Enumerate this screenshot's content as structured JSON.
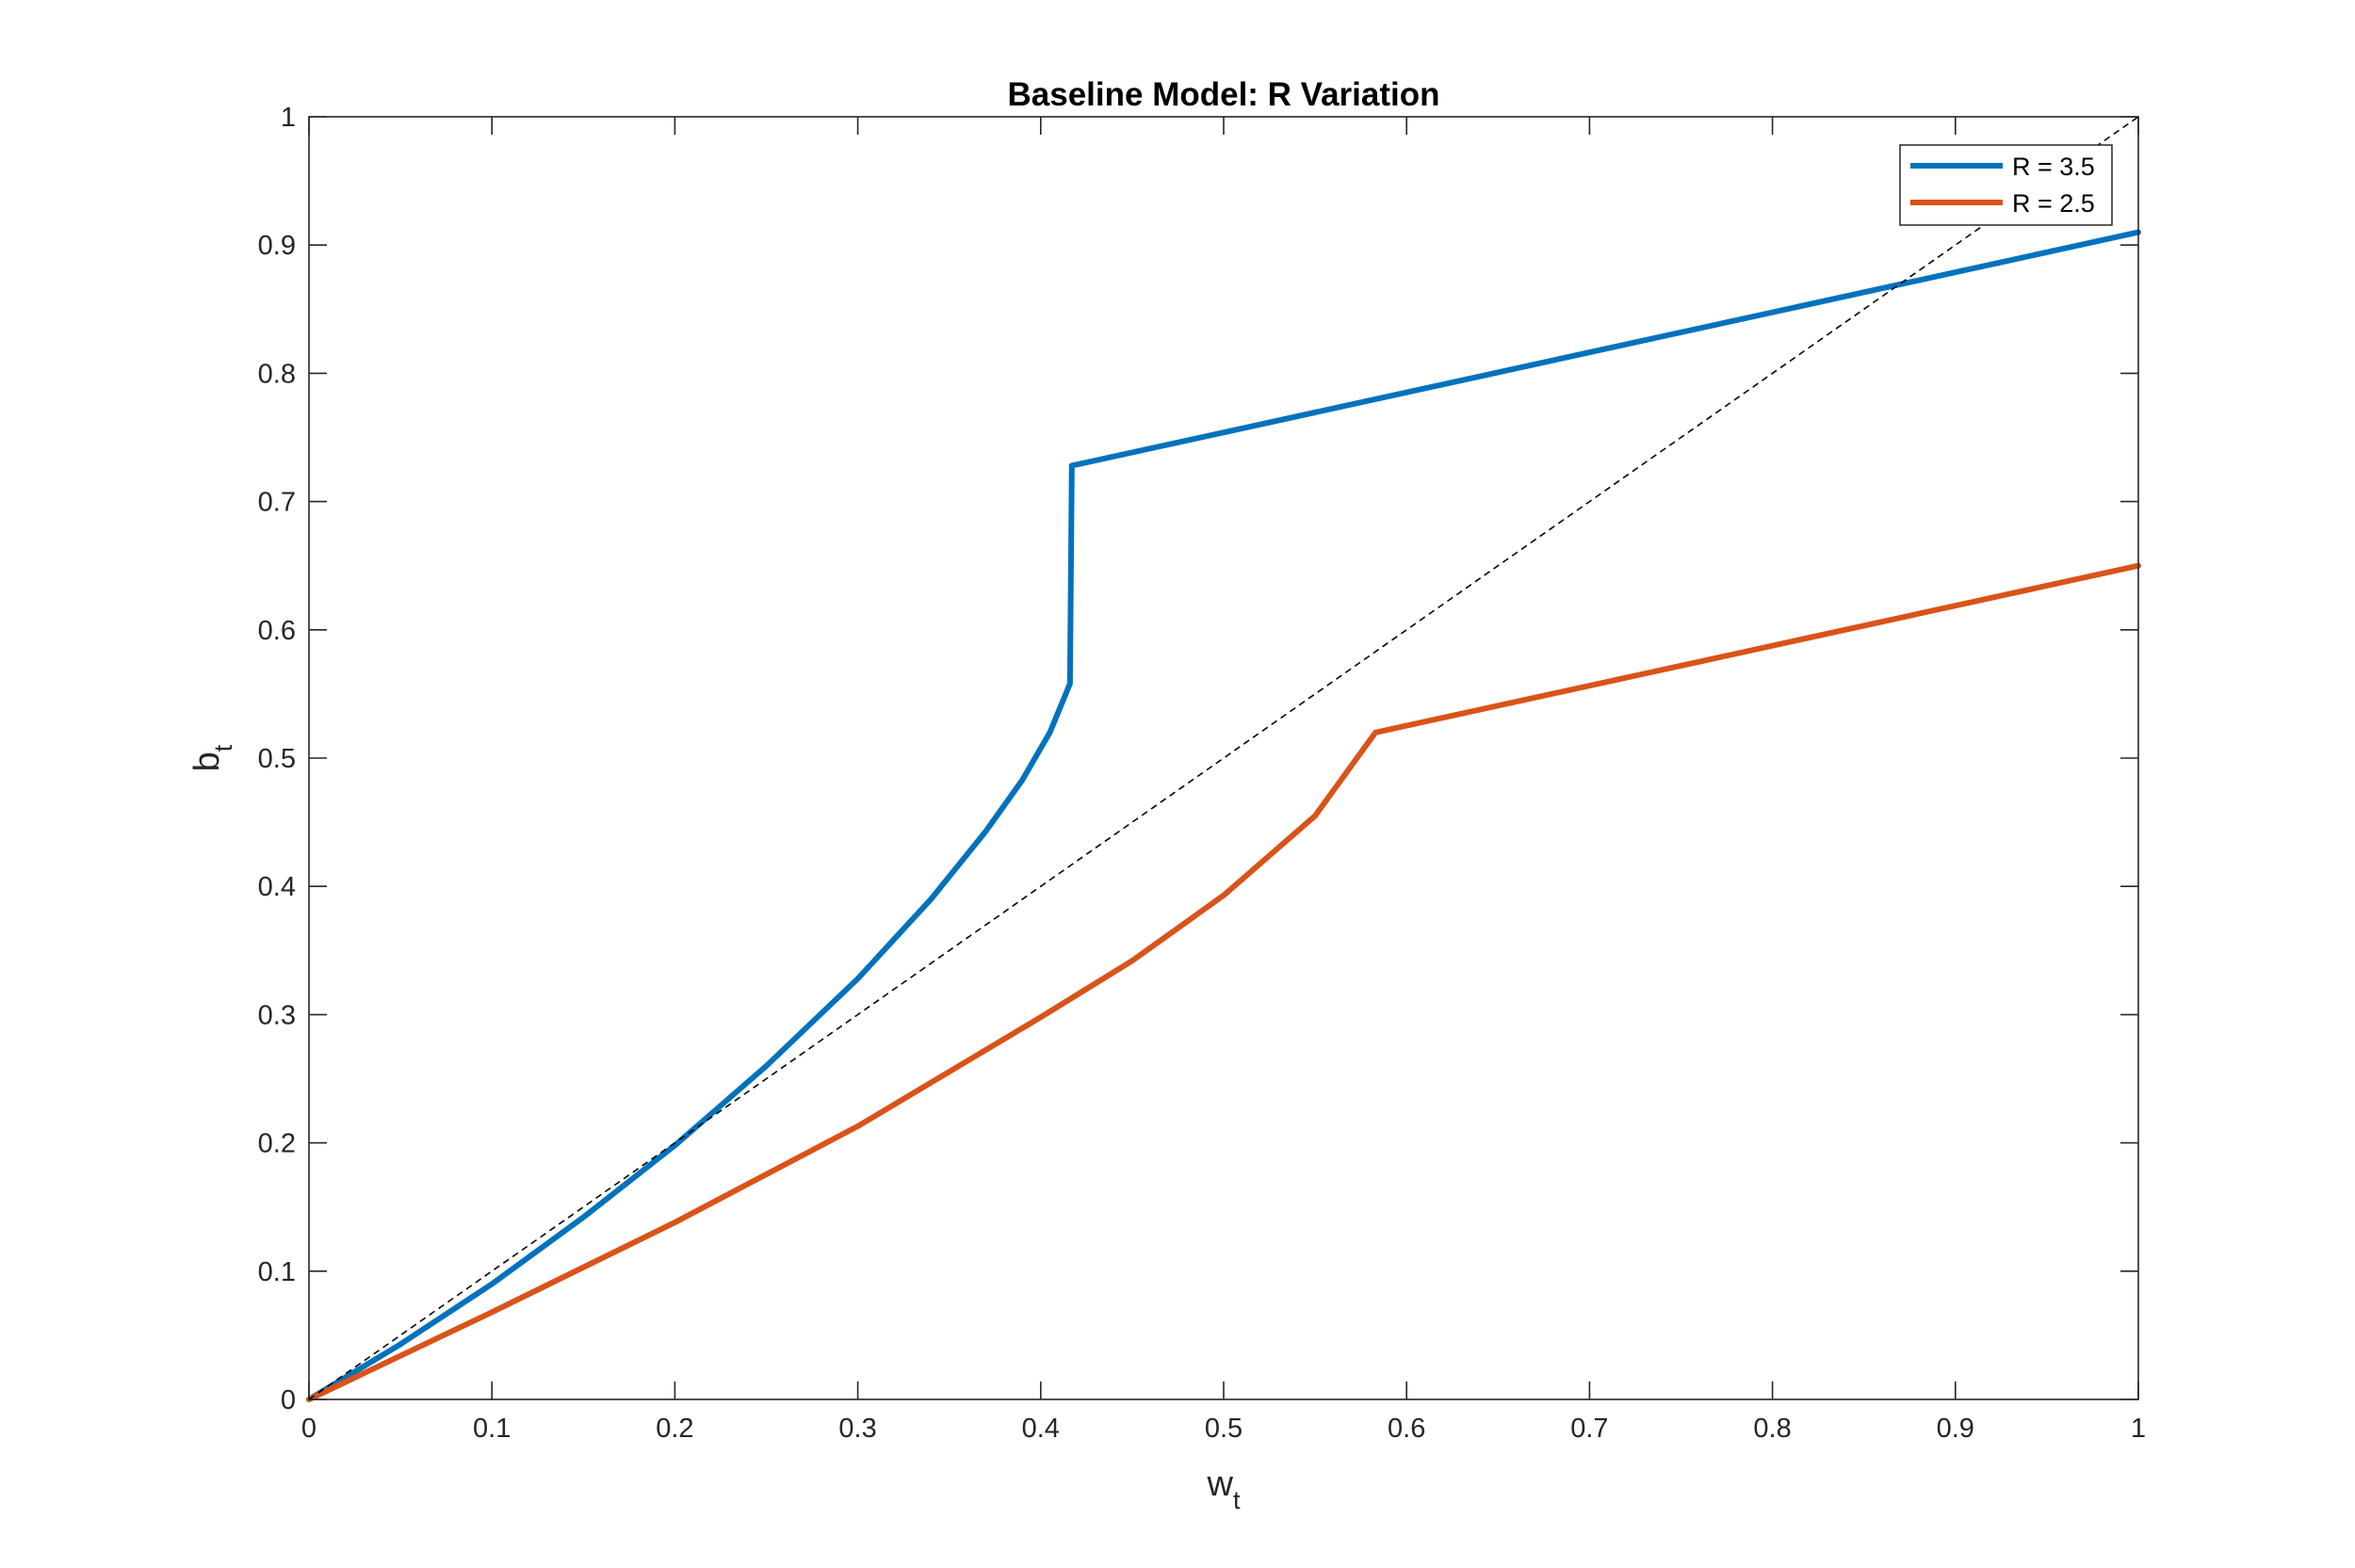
{
  "chart_data": {
    "type": "line",
    "title": "Baseline Model: R Variation",
    "xlabel": {
      "main": "w",
      "sub": "t"
    },
    "ylabel": {
      "main": "b",
      "sub": "t"
    },
    "xlim": [
      0,
      1
    ],
    "ylim": [
      0,
      1
    ],
    "xticks": [
      0,
      0.1,
      0.2,
      0.3,
      0.4,
      0.5,
      0.6,
      0.7,
      0.8,
      0.9,
      1
    ],
    "yticks": [
      0,
      0.1,
      0.2,
      0.3,
      0.4,
      0.5,
      0.6,
      0.7,
      0.8,
      0.9,
      1
    ],
    "xtick_labels": [
      "0",
      "0.1",
      "0.2",
      "0.3",
      "0.4",
      "0.5",
      "0.6",
      "0.7",
      "0.8",
      "0.9",
      "1"
    ],
    "ytick_labels": [
      "0",
      "0.1",
      "0.2",
      "0.3",
      "0.4",
      "0.5",
      "0.6",
      "0.7",
      "0.8",
      "0.9",
      "1"
    ],
    "grid": false,
    "legend_position": "top-right",
    "series": [
      {
        "name": "R = 3.5",
        "color": "#0072BD",
        "style": "solid",
        "points": [
          [
            0,
            0
          ],
          [
            0.05,
            0.043
          ],
          [
            0.1,
            0.09
          ],
          [
            0.15,
            0.142
          ],
          [
            0.2,
            0.198
          ],
          [
            0.25,
            0.26
          ],
          [
            0.3,
            0.328
          ],
          [
            0.34,
            0.39
          ],
          [
            0.37,
            0.443
          ],
          [
            0.39,
            0.483
          ],
          [
            0.405,
            0.52
          ],
          [
            0.416,
            0.558
          ],
          [
            0.417,
            0.728
          ],
          [
            1,
            0.91
          ]
        ]
      },
      {
        "name": "R = 2.5",
        "color": "#D95319",
        "style": "solid",
        "points": [
          [
            0,
            0
          ],
          [
            0.1,
            0.068
          ],
          [
            0.2,
            0.138
          ],
          [
            0.3,
            0.213
          ],
          [
            0.4,
            0.298
          ],
          [
            0.45,
            0.342
          ],
          [
            0.5,
            0.393
          ],
          [
            0.55,
            0.455
          ],
          [
            0.583,
            0.52
          ],
          [
            1,
            0.65
          ]
        ]
      },
      {
        "name": "",
        "color": "#000000",
        "style": "dashed",
        "points": [
          [
            0,
            0
          ],
          [
            1,
            1
          ]
        ]
      }
    ]
  }
}
